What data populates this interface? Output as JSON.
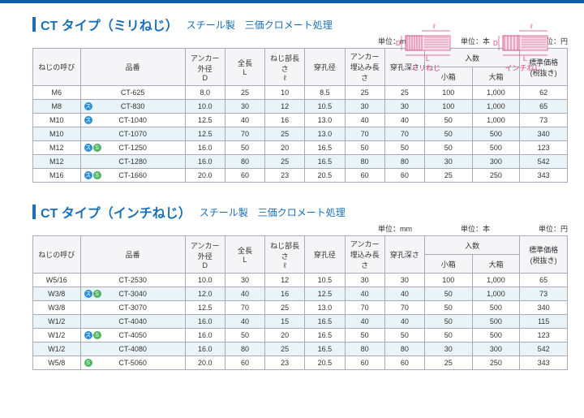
{
  "colors": {
    "accent": "#1a6fb7",
    "pink": "#d4447a",
    "border": "#aabbcc",
    "highlight": "#e8f4f7",
    "header_bg": "#f5f5f8",
    "badge_blue": "#2a8fd4",
    "badge_green": "#4db560"
  },
  "diagrams": {
    "left_label": "ミリねじ",
    "right_label": "インチねじ",
    "dims": {
      "D": "D",
      "L": "L",
      "l": "ℓ"
    }
  },
  "table1": {
    "title_main": "CT タイプ（ミリねじ）",
    "title_sub": "スチール製　三価クロメート処理",
    "unit_mm": "単位：mm",
    "unit_hon": "単位：本",
    "unit_yen": "単位：円",
    "headers": {
      "size": "ねじの呼び",
      "part": "品番",
      "D": "アンカー外径\nD",
      "L": "全長\nL",
      "l": "ねじ部長さ\nℓ",
      "hole": "穿孔径",
      "embed": "アンカー\n埋込み長さ",
      "depth": "穿孔深さ",
      "qty": "入数",
      "qty_s": "小箱",
      "qty_l": "大箱",
      "price": "標準価格\n(税抜き)"
    },
    "rows": [
      {
        "hl": false,
        "size": "M6",
        "badges": [],
        "part": "CT-625",
        "D": "8.0",
        "L": "25",
        "l": "10",
        "hole": "8.5",
        "embed": "25",
        "depth": "25",
        "qs": "100",
        "ql": "1,000",
        "price": "62"
      },
      {
        "hl": true,
        "size": "M8",
        "badges": [
          "s"
        ],
        "part": "CT-830",
        "D": "10.0",
        "L": "30",
        "l": "12",
        "hole": "10.5",
        "embed": "30",
        "depth": "30",
        "qs": "100",
        "ql": "1,000",
        "price": "65"
      },
      {
        "hl": false,
        "size": "M10",
        "badges": [
          "s"
        ],
        "part": "CT-1040",
        "D": "12.5",
        "L": "40",
        "l": "16",
        "hole": "13.0",
        "embed": "40",
        "depth": "40",
        "qs": "50",
        "ql": "1,000",
        "price": "73"
      },
      {
        "hl": true,
        "size": "M10",
        "badges": [],
        "part": "CT-1070",
        "D": "12.5",
        "L": "70",
        "l": "25",
        "hole": "13.0",
        "embed": "70",
        "depth": "70",
        "qs": "50",
        "ql": "500",
        "price": "340"
      },
      {
        "hl": false,
        "size": "M12",
        "badges": [
          "s",
          "c"
        ],
        "part": "CT-1250",
        "D": "16.0",
        "L": "50",
        "l": "20",
        "hole": "16.5",
        "embed": "50",
        "depth": "50",
        "qs": "50",
        "ql": "500",
        "price": "123"
      },
      {
        "hl": true,
        "size": "M12",
        "badges": [],
        "part": "CT-1280",
        "D": "16.0",
        "L": "80",
        "l": "25",
        "hole": "16.5",
        "embed": "80",
        "depth": "80",
        "qs": "30",
        "ql": "300",
        "price": "542"
      },
      {
        "hl": false,
        "size": "M16",
        "badges": [
          "s",
          "c"
        ],
        "part": "CT-1660",
        "D": "20.0",
        "L": "60",
        "l": "23",
        "hole": "20.5",
        "embed": "60",
        "depth": "60",
        "qs": "25",
        "ql": "250",
        "price": "343"
      }
    ]
  },
  "table2": {
    "title_main": "CT タイプ（インチねじ）",
    "title_sub": "スチール製　三価クロメート処理",
    "rows": [
      {
        "hl": false,
        "size": "W5/16",
        "badges": [],
        "part": "CT-2530",
        "D": "10.0",
        "L": "30",
        "l": "12",
        "hole": "10.5",
        "embed": "30",
        "depth": "30",
        "qs": "100",
        "ql": "1,000",
        "price": "65"
      },
      {
        "hl": true,
        "size": "W3/8",
        "badges": [
          "s",
          "c"
        ],
        "part": "CT-3040",
        "D": "12.0",
        "L": "40",
        "l": "16",
        "hole": "12.5",
        "embed": "40",
        "depth": "40",
        "qs": "50",
        "ql": "1,000",
        "price": "73"
      },
      {
        "hl": false,
        "size": "W3/8",
        "badges": [],
        "part": "CT-3070",
        "D": "12.5",
        "L": "70",
        "l": "25",
        "hole": "13.0",
        "embed": "70",
        "depth": "70",
        "qs": "50",
        "ql": "500",
        "price": "340"
      },
      {
        "hl": true,
        "size": "W1/2",
        "badges": [],
        "part": "CT-4040",
        "D": "16.0",
        "L": "40",
        "l": "15",
        "hole": "16.5",
        "embed": "40",
        "depth": "40",
        "qs": "50",
        "ql": "500",
        "price": "115"
      },
      {
        "hl": false,
        "size": "W1/2",
        "badges": [
          "s",
          "c"
        ],
        "part": "CT-4050",
        "D": "16.0",
        "L": "50",
        "l": "20",
        "hole": "16.5",
        "embed": "50",
        "depth": "50",
        "qs": "50",
        "ql": "500",
        "price": "123"
      },
      {
        "hl": true,
        "size": "W1/2",
        "badges": [],
        "part": "CT-4080",
        "D": "16.0",
        "L": "80",
        "l": "25",
        "hole": "16.5",
        "embed": "80",
        "depth": "80",
        "qs": "30",
        "ql": "300",
        "price": "542"
      },
      {
        "hl": false,
        "size": "W5/8",
        "badges": [
          "c"
        ],
        "part": "CT-5060",
        "D": "20.0",
        "L": "60",
        "l": "23",
        "hole": "20.5",
        "embed": "60",
        "depth": "60",
        "qs": "25",
        "ql": "250",
        "price": "343"
      }
    ]
  }
}
